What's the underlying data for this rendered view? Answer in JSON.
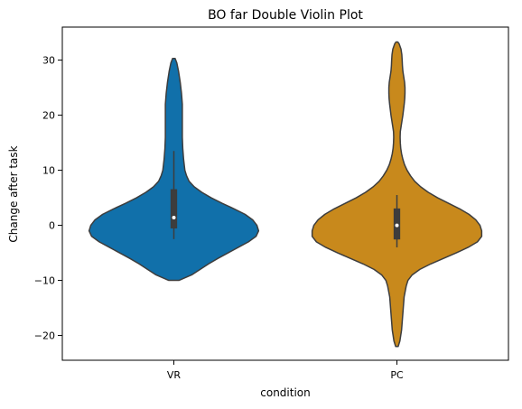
{
  "chart_data": {
    "type": "violin",
    "title": "BO far Double Violin Plot",
    "xlabel": "condition",
    "ylabel": "Change after task",
    "categories": [
      "VR",
      "PC"
    ],
    "ylim": [
      -24.5,
      36
    ],
    "yticks": [
      -20,
      -10,
      0,
      10,
      20,
      30
    ],
    "ytick_labels": [
      "−20",
      "−10",
      "0",
      "10",
      "20",
      "30"
    ],
    "grid": false,
    "legend": "none",
    "colors": {
      "VR": "#1170aa",
      "PC": "#c8891c",
      "outline": "#3d3d3d",
      "box": "#3d3d3d",
      "median": "#ffffff",
      "frame": "#000000"
    },
    "series": [
      {
        "category": "VR",
        "color": "#1170aa",
        "min": -10,
        "max": 30.3,
        "q1": -0.5,
        "median": 1.4,
        "q3": 6.5,
        "whisker_low": -2.5,
        "whisker_high": 13.5,
        "density_profile": [
          {
            "y": -10.0,
            "w": 0.06
          },
          {
            "y": -9.0,
            "w": 0.21
          },
          {
            "y": -8.0,
            "w": 0.31
          },
          {
            "y": -7.0,
            "w": 0.41
          },
          {
            "y": -6.0,
            "w": 0.52
          },
          {
            "y": -5.0,
            "w": 0.64
          },
          {
            "y": -4.0,
            "w": 0.76
          },
          {
            "y": -3.0,
            "w": 0.88
          },
          {
            "y": -2.0,
            "w": 0.97
          },
          {
            "y": -1.0,
            "w": 1.0
          },
          {
            "y": 0.0,
            "w": 0.98
          },
          {
            "y": 1.0,
            "w": 0.93
          },
          {
            "y": 2.0,
            "w": 0.84
          },
          {
            "y": 3.0,
            "w": 0.71
          },
          {
            "y": 4.0,
            "w": 0.57
          },
          {
            "y": 5.0,
            "w": 0.44
          },
          {
            "y": 6.0,
            "w": 0.33
          },
          {
            "y": 7.0,
            "w": 0.24
          },
          {
            "y": 8.0,
            "w": 0.18
          },
          {
            "y": 9.0,
            "w": 0.15
          },
          {
            "y": 10.0,
            "w": 0.13
          },
          {
            "y": 12.0,
            "w": 0.115
          },
          {
            "y": 14.0,
            "w": 0.105
          },
          {
            "y": 16.0,
            "w": 0.1
          },
          {
            "y": 18.0,
            "w": 0.1
          },
          {
            "y": 20.0,
            "w": 0.1
          },
          {
            "y": 22.0,
            "w": 0.1
          },
          {
            "y": 24.0,
            "w": 0.09
          },
          {
            "y": 26.0,
            "w": 0.075
          },
          {
            "y": 28.0,
            "w": 0.055
          },
          {
            "y": 29.5,
            "w": 0.035
          },
          {
            "y": 30.3,
            "w": 0.015
          }
        ]
      },
      {
        "category": "PC",
        "color": "#c8891c",
        "min": -22,
        "max": 33.3,
        "q1": -2.5,
        "median": 0.0,
        "q3": 3.0,
        "whisker_low": -4.0,
        "whisker_high": 5.5,
        "density_profile": [
          {
            "y": -22.0,
            "w": 0.015
          },
          {
            "y": -21.0,
            "w": 0.035
          },
          {
            "y": -19.0,
            "w": 0.055
          },
          {
            "y": -17.0,
            "w": 0.065
          },
          {
            "y": -15.0,
            "w": 0.075
          },
          {
            "y": -13.0,
            "w": 0.085
          },
          {
            "y": -11.0,
            "w": 0.11
          },
          {
            "y": -10.0,
            "w": 0.13
          },
          {
            "y": -9.0,
            "w": 0.18
          },
          {
            "y": -8.0,
            "w": 0.27
          },
          {
            "y": -7.0,
            "w": 0.4
          },
          {
            "y": -6.0,
            "w": 0.55
          },
          {
            "y": -5.0,
            "w": 0.7
          },
          {
            "y": -4.0,
            "w": 0.84
          },
          {
            "y": -3.0,
            "w": 0.95
          },
          {
            "y": -2.0,
            "w": 1.0
          },
          {
            "y": -1.0,
            "w": 1.0
          },
          {
            "y": 0.0,
            "w": 0.98
          },
          {
            "y": 1.0,
            "w": 0.93
          },
          {
            "y": 2.0,
            "w": 0.85
          },
          {
            "y": 3.0,
            "w": 0.74
          },
          {
            "y": 4.0,
            "w": 0.61
          },
          {
            "y": 5.0,
            "w": 0.48
          },
          {
            "y": 6.0,
            "w": 0.37
          },
          {
            "y": 7.0,
            "w": 0.28
          },
          {
            "y": 8.0,
            "w": 0.21
          },
          {
            "y": 9.0,
            "w": 0.16
          },
          {
            "y": 10.0,
            "w": 0.12
          },
          {
            "y": 11.0,
            "w": 0.09
          },
          {
            "y": 12.0,
            "w": 0.07
          },
          {
            "y": 13.0,
            "w": 0.055
          },
          {
            "y": 14.0,
            "w": 0.045
          },
          {
            "y": 15.0,
            "w": 0.04
          },
          {
            "y": 16.0,
            "w": 0.038
          },
          {
            "y": 17.0,
            "w": 0.04
          },
          {
            "y": 18.0,
            "w": 0.05
          },
          {
            "y": 19.0,
            "w": 0.06
          },
          {
            "y": 20.0,
            "w": 0.07
          },
          {
            "y": 21.0,
            "w": 0.078
          },
          {
            "y": 22.0,
            "w": 0.086
          },
          {
            "y": 23.0,
            "w": 0.092
          },
          {
            "y": 24.0,
            "w": 0.095
          },
          {
            "y": 25.0,
            "w": 0.095
          },
          {
            "y": 26.0,
            "w": 0.09
          },
          {
            "y": 27.0,
            "w": 0.08
          },
          {
            "y": 28.0,
            "w": 0.07
          },
          {
            "y": 29.0,
            "w": 0.065
          },
          {
            "y": 30.0,
            "w": 0.062
          },
          {
            "y": 31.0,
            "w": 0.058
          },
          {
            "y": 32.0,
            "w": 0.048
          },
          {
            "y": 33.0,
            "w": 0.025
          },
          {
            "y": 33.3,
            "w": 0.01
          }
        ]
      }
    ]
  }
}
